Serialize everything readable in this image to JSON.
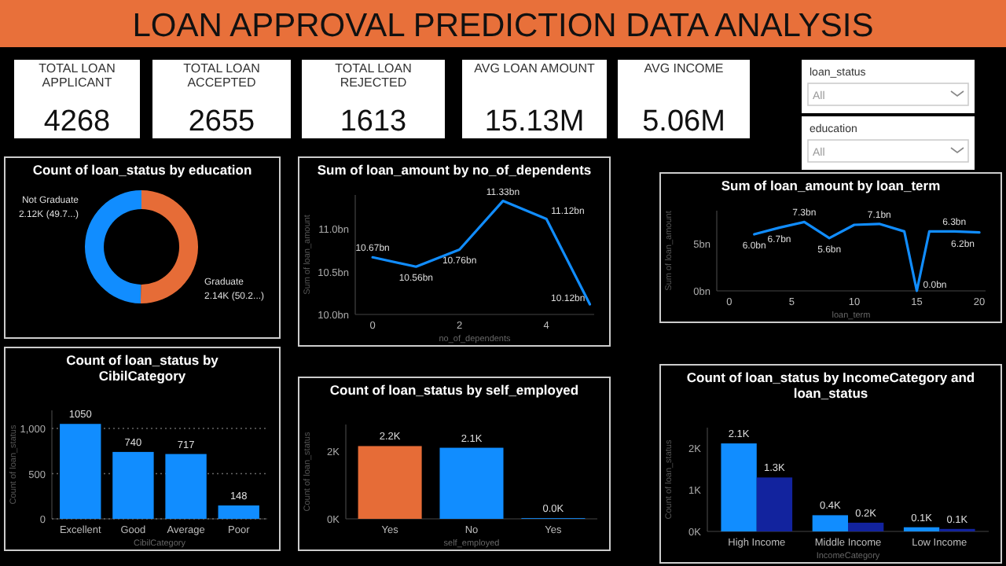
{
  "chart_data": [
    {
      "type": "other",
      "title": "LOAN APPROVAL PREDICTION DATA ANALYSIS",
      "categories": [
        "TOTAL LOAN APPLICANT",
        "TOTAL LOAN ACCEPTED",
        "TOTAL LOAN REJECTED",
        "AVG LOAN AMOUNT",
        "AVG INCOME"
      ],
      "value_labels": [
        "4268",
        "2655",
        "1613",
        "15.13M",
        "5.06M"
      ],
      "annotations": [
        "loan_status",
        "All",
        "education",
        "All"
      ]
    },
    {
      "type": "donut",
      "title": "Count of loan_status by education",
      "categories": [
        "Graduate",
        "Not Graduate"
      ],
      "values": [
        2140,
        2120
      ],
      "colors": [
        "#e66c37",
        "#118dff"
      ],
      "value_labels": [
        "2.14K (50.2...)",
        "2.12K (49.7...)"
      ]
    },
    {
      "type": "line",
      "title": "Sum of loan_amount by no_of_dependents",
      "xlabel": "no_of_dependents",
      "ylabel": "Sum of loan_amount",
      "color": "#118dff",
      "x": [
        0,
        1,
        2,
        3,
        4,
        5
      ],
      "values": [
        10.67,
        10.56,
        10.76,
        11.33,
        11.12,
        10.12
      ],
      "value_labels": [
        "10.67bn",
        "10.56bn",
        "10.76bn",
        "11.33bn",
        "11.12bn",
        "10.12bn"
      ],
      "xlim": [
        -0.4,
        5.1
      ],
      "xticks": [
        0,
        2,
        4
      ],
      "ylim": [
        10.0,
        11.4
      ],
      "yticks": [
        {
          "value": 10.0,
          "label": "10.0bn"
        },
        {
          "value": 10.5,
          "label": "10.5bn"
        },
        {
          "value": 11.0,
          "label": "11.0bn"
        }
      ]
    },
    {
      "type": "line",
      "title": "Sum of loan_amount by loan_term",
      "xlabel": "loan_term",
      "ylabel": "Sum of loan_amount",
      "color": "#118dff",
      "x": [
        2,
        4,
        6,
        8,
        10,
        12,
        14,
        15,
        16,
        18,
        20
      ],
      "values": [
        6.0,
        6.7,
        7.3,
        5.6,
        7.0,
        7.1,
        6.3,
        0.0,
        6.3,
        6.3,
        6.2
      ],
      "value_labels": [
        "6.0bn",
        "6.7bn",
        "7.3bn",
        "5.6bn",
        null,
        "7.1bn",
        null,
        "0.0bn",
        null,
        "6.3bn",
        "6.2bn"
      ],
      "xlim": [
        -1,
        20.5
      ],
      "xticks": [
        0,
        5,
        10,
        15,
        20
      ],
      "ylim": [
        0,
        8.5
      ],
      "yticks": [
        {
          "value": 0,
          "label": "0bn"
        },
        {
          "value": 5,
          "label": "5bn"
        }
      ]
    },
    {
      "type": "bar",
      "title": "Count of loan_status by CibilCategory",
      "xlabel": "CibilCategory",
      "ylabel": "Count of loan_status",
      "categories": [
        "Excellent",
        "Good",
        "Average",
        "Poor"
      ],
      "values": [
        1050,
        740,
        717,
        148
      ],
      "color": "#118dff",
      "data_labels": true,
      "grid": "y",
      "ylim": [
        0,
        1200
      ],
      "yticks": [
        0,
        500,
        {
          "value": 1000,
          "label": "1,000"
        }
      ]
    },
    {
      "type": "bar",
      "title": "Count of loan_status by self_employed",
      "xlabel": "self_employed",
      "ylabel": "Count of loan_status",
      "categories": [
        "Yes",
        "No",
        "Yes"
      ],
      "values": [
        2.16,
        2.11,
        0.02
      ],
      "colors": [
        "#e66c37",
        "#118dff",
        "#118dff"
      ],
      "value_labels": [
        "2.2K",
        "2.1K",
        "0.0K"
      ],
      "ylim": [
        0,
        2.8
      ],
      "yticks": [
        {
          "value": 0,
          "label": "0K"
        },
        {
          "value": 2,
          "label": "2K"
        }
      ]
    },
    {
      "type": "bar",
      "title": "Count of loan_status by IncomeCategory and loan_status",
      "xlabel": "IncomeCategory",
      "ylabel": "Count of loan_status",
      "categories": [
        "High Income",
        "Middle Income",
        "Low Income"
      ],
      "ylim": [
        0,
        2.5
      ],
      "yticks": [
        {
          "value": 0,
          "label": "0K"
        },
        {
          "value": 1,
          "label": "1K"
        },
        {
          "value": 2,
          "label": "2K"
        }
      ],
      "series": [
        {
          "color": "#118dff",
          "values": [
            2.12,
            0.39,
            0.1
          ],
          "value_labels": [
            "2.1K",
            "0.4K",
            "0.1K"
          ]
        },
        {
          "color": "#12239e",
          "values": [
            1.3,
            0.21,
            0.06
          ],
          "value_labels": [
            "1.3K",
            "0.2K",
            "0.1K"
          ]
        }
      ]
    }
  ]
}
